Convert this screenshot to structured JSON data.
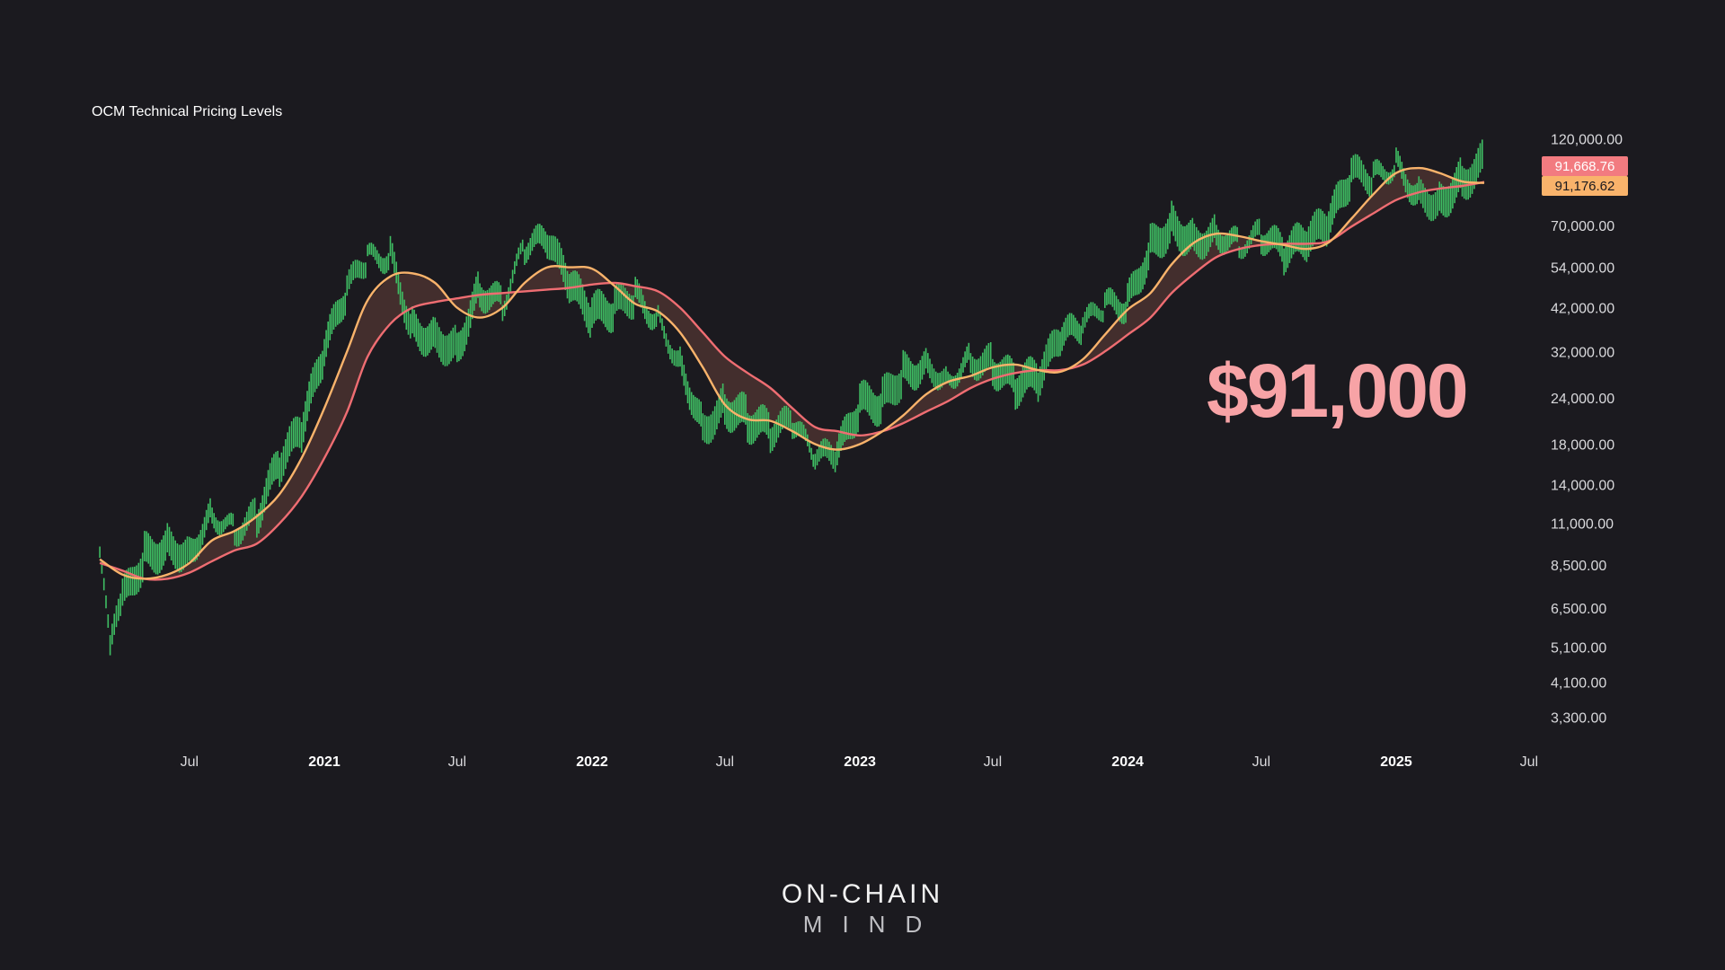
{
  "chart_data": {
    "type": "line",
    "title": "OCM Technical Pricing Levels",
    "scale": "log",
    "ylim": [
      2800,
      170000
    ],
    "x_ticks": [
      {
        "label": "Jul",
        "date": "2020-07-01",
        "major": false
      },
      {
        "label": "2021",
        "date": "2021-01-01",
        "major": true
      },
      {
        "label": "Jul",
        "date": "2021-07-01",
        "major": false
      },
      {
        "label": "2022",
        "date": "2022-01-01",
        "major": true
      },
      {
        "label": "Jul",
        "date": "2022-07-01",
        "major": false
      },
      {
        "label": "2023",
        "date": "2023-01-01",
        "major": true
      },
      {
        "label": "Jul",
        "date": "2023-07-01",
        "major": false
      },
      {
        "label": "2024",
        "date": "2024-01-01",
        "major": true
      },
      {
        "label": "Jul",
        "date": "2024-07-01",
        "major": false
      },
      {
        "label": "2025",
        "date": "2025-01-01",
        "major": true
      },
      {
        "label": "Jul",
        "date": "2025-07-01",
        "major": false
      }
    ],
    "y_ticks": [
      {
        "label": "120,000.00",
        "value": 120000
      },
      {
        "label": "70,000.00",
        "value": 70000
      },
      {
        "label": "54,000.00",
        "value": 54000
      },
      {
        "label": "42,000.00",
        "value": 42000
      },
      {
        "label": "32,000.00",
        "value": 32000
      },
      {
        "label": "24,000.00",
        "value": 24000
      },
      {
        "label": "18,000.00",
        "value": 18000
      },
      {
        "label": "14,000.00",
        "value": 14000
      },
      {
        "label": "11,000.00",
        "value": 11000
      },
      {
        "label": "8,500.00",
        "value": 8500
      },
      {
        "label": "6,500.00",
        "value": 6500
      },
      {
        "label": "5,100.00",
        "value": 5100
      },
      {
        "label": "4,100.00",
        "value": 4100
      },
      {
        "label": "3,300.00",
        "value": 3300
      }
    ],
    "series": [
      {
        "color": "#f9b36b",
        "points": [
          [
            "2020-03-01",
            8800
          ],
          [
            "2020-04-01",
            8000
          ],
          [
            "2020-05-01",
            7800
          ],
          [
            "2020-06-01",
            8000
          ],
          [
            "2020-07-01",
            8600
          ],
          [
            "2020-08-01",
            9900
          ],
          [
            "2020-09-01",
            10500
          ],
          [
            "2020-10-01",
            11500
          ],
          [
            "2020-11-01",
            13200
          ],
          [
            "2020-12-01",
            16500
          ],
          [
            "2021-01-01",
            22500
          ],
          [
            "2021-02-01",
            32000
          ],
          [
            "2021-03-01",
            44000
          ],
          [
            "2021-04-01",
            51000
          ],
          [
            "2021-05-01",
            52000
          ],
          [
            "2021-06-01",
            49000
          ],
          [
            "2021-07-01",
            42000
          ],
          [
            "2021-08-01",
            39500
          ],
          [
            "2021-09-01",
            42000
          ],
          [
            "2021-10-01",
            49000
          ],
          [
            "2021-11-01",
            54000
          ],
          [
            "2021-12-01",
            54000
          ],
          [
            "2022-01-01",
            53500
          ],
          [
            "2022-02-01",
            48000
          ],
          [
            "2022-03-01",
            43000
          ],
          [
            "2022-04-01",
            41000
          ],
          [
            "2022-05-01",
            36000
          ],
          [
            "2022-06-01",
            29000
          ],
          [
            "2022-07-01",
            23000
          ],
          [
            "2022-08-01",
            21000
          ],
          [
            "2022-09-01",
            20800
          ],
          [
            "2022-10-01",
            19500
          ],
          [
            "2022-11-01",
            18000
          ],
          [
            "2022-12-01",
            17400
          ],
          [
            "2023-01-01",
            18000
          ],
          [
            "2023-02-01",
            19500
          ],
          [
            "2023-03-01",
            21500
          ],
          [
            "2023-04-01",
            24500
          ],
          [
            "2023-05-01",
            26500
          ],
          [
            "2023-06-01",
            27500
          ],
          [
            "2023-07-01",
            29000
          ],
          [
            "2023-08-01",
            29500
          ],
          [
            "2023-09-01",
            28500
          ],
          [
            "2023-10-01",
            28200
          ],
          [
            "2023-11-01",
            30500
          ],
          [
            "2023-12-01",
            35500
          ],
          [
            "2024-01-01",
            41500
          ],
          [
            "2024-02-01",
            46000
          ],
          [
            "2024-03-01",
            55000
          ],
          [
            "2024-04-01",
            63000
          ],
          [
            "2024-05-01",
            66500
          ],
          [
            "2024-06-01",
            65500
          ],
          [
            "2024-07-01",
            63500
          ],
          [
            "2024-08-01",
            62000
          ],
          [
            "2024-09-01",
            60500
          ],
          [
            "2024-10-01",
            63000
          ],
          [
            "2024-11-01",
            73000
          ],
          [
            "2024-12-01",
            85000
          ],
          [
            "2025-01-01",
            97000
          ],
          [
            "2025-02-01",
            100000
          ],
          [
            "2025-03-01",
            97000
          ],
          [
            "2025-04-01",
            92000
          ],
          [
            "2025-05-01",
            91176.62
          ]
        ]
      },
      {
        "color": "#ef6d72",
        "points": [
          [
            "2020-03-01",
            8600
          ],
          [
            "2020-04-01",
            8200
          ],
          [
            "2020-05-01",
            7800
          ],
          [
            "2020-06-01",
            7800
          ],
          [
            "2020-07-01",
            8100
          ],
          [
            "2020-08-01",
            8700
          ],
          [
            "2020-09-01",
            9300
          ],
          [
            "2020-10-01",
            9700
          ],
          [
            "2020-11-01",
            11000
          ],
          [
            "2020-12-01",
            13000
          ],
          [
            "2021-01-01",
            16500
          ],
          [
            "2021-02-01",
            22000
          ],
          [
            "2021-03-01",
            31000
          ],
          [
            "2021-04-01",
            38000
          ],
          [
            "2021-05-01",
            42000
          ],
          [
            "2021-06-01",
            43500
          ],
          [
            "2021-07-01",
            44500
          ],
          [
            "2021-08-01",
            45500
          ],
          [
            "2021-09-01",
            46000
          ],
          [
            "2021-10-01",
            46500
          ],
          [
            "2021-11-01",
            47000
          ],
          [
            "2021-12-01",
            47500
          ],
          [
            "2022-01-01",
            48500
          ],
          [
            "2022-02-01",
            49000
          ],
          [
            "2022-03-01",
            48000
          ],
          [
            "2022-04-01",
            46500
          ],
          [
            "2022-05-01",
            42000
          ],
          [
            "2022-06-01",
            36000
          ],
          [
            "2022-07-01",
            31000
          ],
          [
            "2022-08-01",
            28000
          ],
          [
            "2022-09-01",
            25500
          ],
          [
            "2022-10-01",
            22500
          ],
          [
            "2022-11-01",
            20000
          ],
          [
            "2022-12-01",
            19500
          ],
          [
            "2023-01-01",
            19000
          ],
          [
            "2023-02-01",
            19500
          ],
          [
            "2023-03-01",
            20500
          ],
          [
            "2023-04-01",
            22000
          ],
          [
            "2023-05-01",
            23500
          ],
          [
            "2023-06-01",
            25500
          ],
          [
            "2023-07-01",
            27000
          ],
          [
            "2023-08-01",
            28000
          ],
          [
            "2023-09-01",
            28500
          ],
          [
            "2023-10-01",
            28500
          ],
          [
            "2023-11-01",
            29500
          ],
          [
            "2023-12-01",
            32000
          ],
          [
            "2024-01-01",
            35500
          ],
          [
            "2024-02-01",
            39500
          ],
          [
            "2024-03-01",
            46000
          ],
          [
            "2024-04-01",
            52000
          ],
          [
            "2024-05-01",
            57500
          ],
          [
            "2024-06-01",
            60500
          ],
          [
            "2024-07-01",
            62000
          ],
          [
            "2024-08-01",
            62500
          ],
          [
            "2024-09-01",
            62500
          ],
          [
            "2024-10-01",
            63500
          ],
          [
            "2024-11-01",
            69500
          ],
          [
            "2024-12-01",
            75500
          ],
          [
            "2025-01-01",
            82000
          ],
          [
            "2025-02-01",
            86000
          ],
          [
            "2025-03-01",
            88000
          ],
          [
            "2025-04-01",
            89500
          ],
          [
            "2025-05-01",
            91668.76
          ]
        ]
      },
      {
        "color": "#3fbe63",
        "points": [
          [
            "2020-03-01",
            9200
          ],
          [
            "2020-03-15",
            5000
          ],
          [
            "2020-04-01",
            6800
          ],
          [
            "2020-05-01",
            9000
          ],
          [
            "2020-06-01",
            9600
          ],
          [
            "2020-07-01",
            9200
          ],
          [
            "2020-08-01",
            11700
          ],
          [
            "2020-09-01",
            10500
          ],
          [
            "2020-10-01",
            11500
          ],
          [
            "2020-11-01",
            16000
          ],
          [
            "2020-12-01",
            19500
          ],
          [
            "2021-01-01",
            32000
          ],
          [
            "2021-02-01",
            47000
          ],
          [
            "2021-03-01",
            57000
          ],
          [
            "2021-04-01",
            58000
          ],
          [
            "2021-05-01",
            37000
          ],
          [
            "2021-06-01",
            35000
          ],
          [
            "2021-07-01",
            33000
          ],
          [
            "2021-08-01",
            47000
          ],
          [
            "2021-09-01",
            43000
          ],
          [
            "2021-10-01",
            61000
          ],
          [
            "2021-11-01",
            64000
          ],
          [
            "2021-12-01",
            48000
          ],
          [
            "2022-01-01",
            40000
          ],
          [
            "2022-02-01",
            42000
          ],
          [
            "2022-03-01",
            45000
          ],
          [
            "2022-04-01",
            39000
          ],
          [
            "2022-05-01",
            30000
          ],
          [
            "2022-06-01",
            20000
          ],
          [
            "2022-07-01",
            23000
          ],
          [
            "2022-08-01",
            21000
          ],
          [
            "2022-09-01",
            19500
          ],
          [
            "2022-10-01",
            20500
          ],
          [
            "2022-11-01",
            16500
          ],
          [
            "2022-12-01",
            16800
          ],
          [
            "2023-01-01",
            23000
          ],
          [
            "2023-02-01",
            23500
          ],
          [
            "2023-03-01",
            28000
          ],
          [
            "2023-04-01",
            29500
          ],
          [
            "2023-05-01",
            27000
          ],
          [
            "2023-06-01",
            30500
          ],
          [
            "2023-07-01",
            29500
          ],
          [
            "2023-08-01",
            26000
          ],
          [
            "2023-09-01",
            27000
          ],
          [
            "2023-10-01",
            34500
          ],
          [
            "2023-11-01",
            37500
          ],
          [
            "2023-12-01",
            42500
          ],
          [
            "2024-01-01",
            43000
          ],
          [
            "2024-02-01",
            61000
          ],
          [
            "2024-03-01",
            71000
          ],
          [
            "2024-04-01",
            64000
          ],
          [
            "2024-05-01",
            67000
          ],
          [
            "2024-06-01",
            62000
          ],
          [
            "2024-07-01",
            66000
          ],
          [
            "2024-08-01",
            59000
          ],
          [
            "2024-09-01",
            63500
          ],
          [
            "2024-10-01",
            70000
          ],
          [
            "2024-11-01",
            96000
          ],
          [
            "2024-12-01",
            94000
          ],
          [
            "2025-01-01",
            102000
          ],
          [
            "2025-02-01",
            84000
          ],
          [
            "2025-03-01",
            82000
          ],
          [
            "2025-04-01",
            93000
          ],
          [
            "2025-05-01",
            104000
          ]
        ]
      }
    ],
    "price_tags": [
      {
        "label": "91,668.76",
        "value": 91668.76,
        "bg": "#f27b80",
        "fg": "#ffffff"
      },
      {
        "label": "91,176.62",
        "value": 91176.62,
        "bg": "#f9b36b",
        "fg": "#1b1a1f"
      }
    ],
    "annotation": "$91,000",
    "colors": {
      "background": "#1b1a1f",
      "fill_between": "#4a3330",
      "candles": "#3fbe63"
    }
  },
  "brand": {
    "line1": "ON-CHAIN",
    "line2": "MIND"
  }
}
